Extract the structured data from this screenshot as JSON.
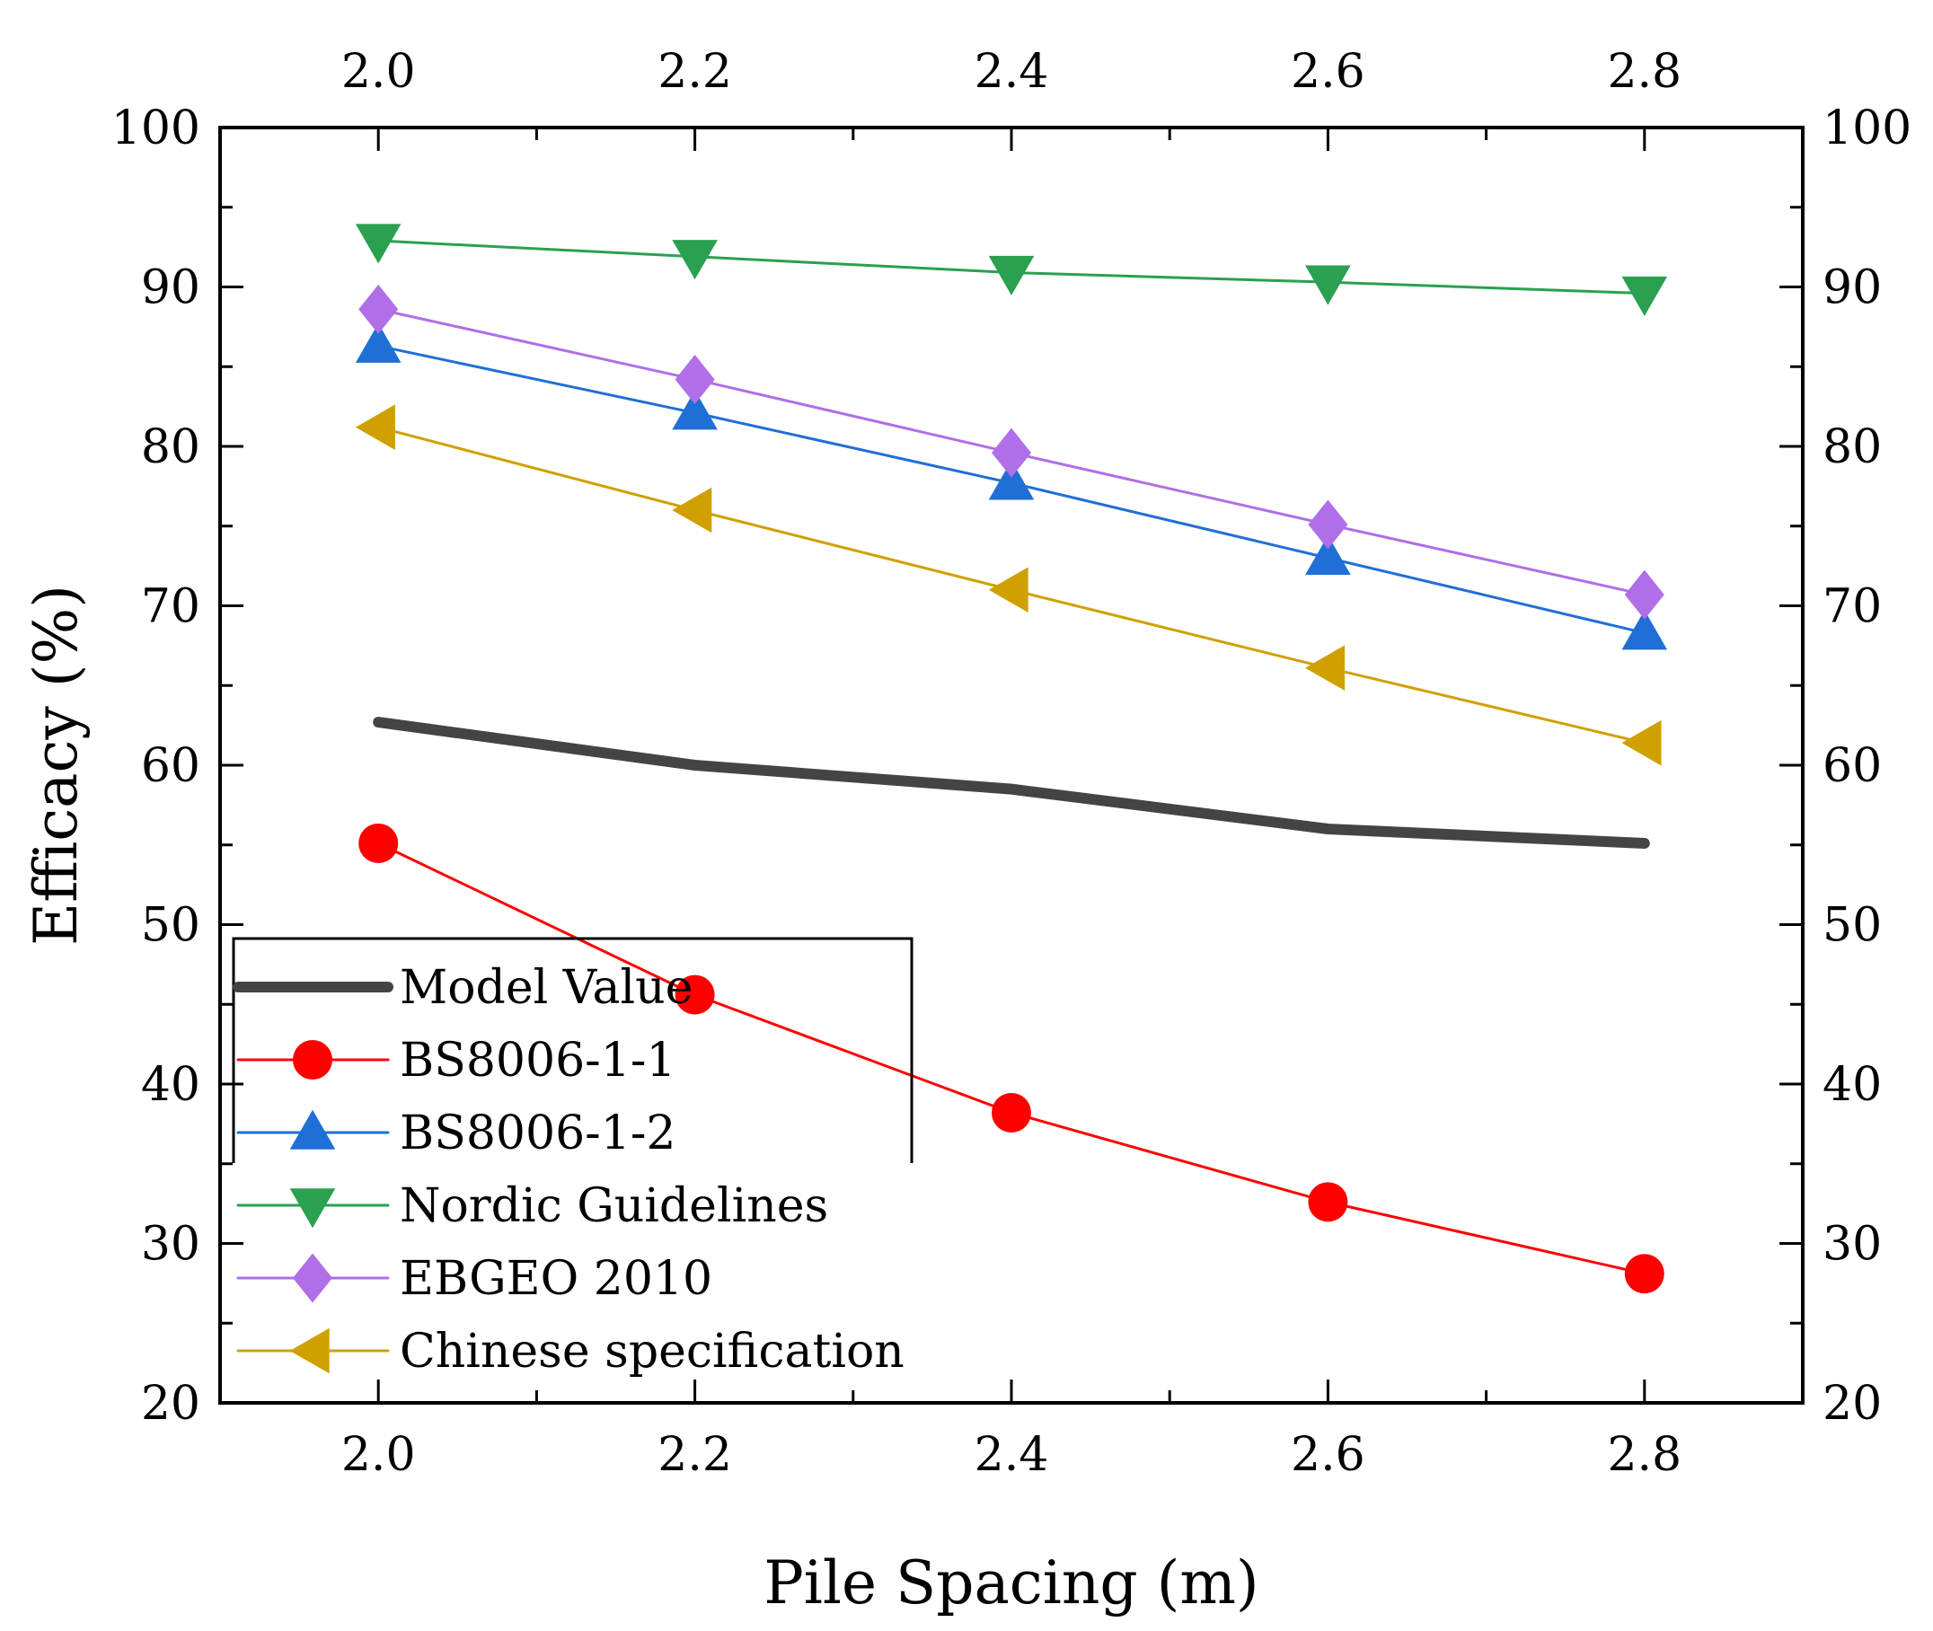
{
  "chart_data": {
    "type": "line",
    "xlabel": "Pile Spacing (m)",
    "ylabel": "Efficacy (%)",
    "xlim": [
      1.9,
      2.9
    ],
    "ylim": [
      20,
      100
    ],
    "x_ticks": [
      "2.0",
      "2.2",
      "2.4",
      "2.6",
      "2.8"
    ],
    "y_ticks": [
      "20",
      "30",
      "40",
      "50",
      "60",
      "70",
      "80",
      "90",
      "100"
    ],
    "x": [
      2.0,
      2.2,
      2.4,
      2.6,
      2.8
    ],
    "legend_position": "bottom-left",
    "series": [
      {
        "name": "Model Value",
        "values": [
          62.7,
          60.0,
          58.5,
          56.0,
          55.1
        ],
        "color": "#444444",
        "marker": "none"
      },
      {
        "name": "BS8006-1-1",
        "values": [
          55.1,
          45.6,
          38.2,
          32.6,
          28.1
        ],
        "color": "#ff0000",
        "marker": "circle"
      },
      {
        "name": "BS8006-1-2",
        "values": [
          86.3,
          82.1,
          77.7,
          73.0,
          68.3
        ],
        "color": "#1f6fd6",
        "marker": "triangle-up"
      },
      {
        "name": "Nordic Guidelines",
        "values": [
          92.9,
          91.9,
          90.9,
          90.3,
          89.6
        ],
        "color": "#2aa050",
        "marker": "triangle-down"
      },
      {
        "name": "EBGEO 2010",
        "values": [
          88.6,
          84.2,
          79.6,
          75.1,
          70.7
        ],
        "color": "#b06ee8",
        "marker": "diamond"
      },
      {
        "name": "Chinese specification",
        "values": [
          81.2,
          76.0,
          71.0,
          66.1,
          61.4
        ],
        "color": "#d0a000",
        "marker": "triangle-left"
      }
    ]
  }
}
